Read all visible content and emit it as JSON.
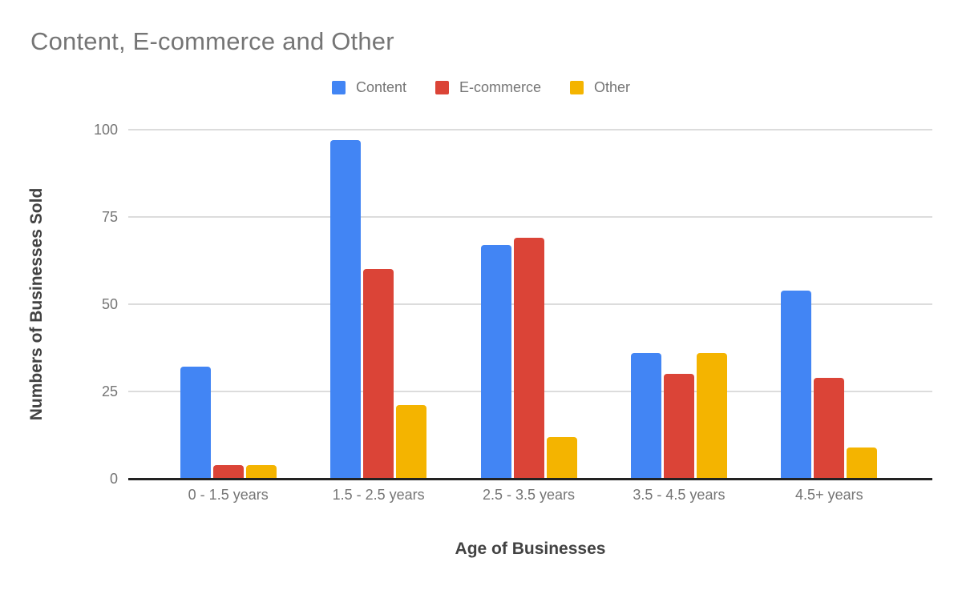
{
  "chart_data": {
    "type": "bar",
    "title": "Content, E-commerce and Other",
    "categories": [
      "0 - 1.5 years",
      "1.5 - 2.5 years",
      "2.5 - 3.5 years",
      "3.5 - 4.5 years",
      "4.5+ years"
    ],
    "series": [
      {
        "name": "Content",
        "color": "#4285f4",
        "values": [
          32,
          97,
          67,
          36,
          54
        ]
      },
      {
        "name": "E-commerce",
        "color": "#db4437",
        "values": [
          4,
          60,
          69,
          30,
          29
        ]
      },
      {
        "name": "Other",
        "color": "#f4b400",
        "values": [
          4,
          21,
          12,
          36,
          9
        ]
      }
    ],
    "xlabel": "Age of Businesses",
    "ylabel": "Numbers of Businesses Sold",
    "ylim": [
      0,
      100
    ],
    "yticks": [
      0,
      25,
      50,
      75,
      100
    ],
    "grid": true,
    "legend_position": "top"
  },
  "colors": {
    "title_text": "#757575",
    "axis_title_text": "#424242",
    "tick_label_text": "#757575",
    "gridline": "#dcdcdc",
    "axis_line": "#222222",
    "background": "#ffffff"
  }
}
